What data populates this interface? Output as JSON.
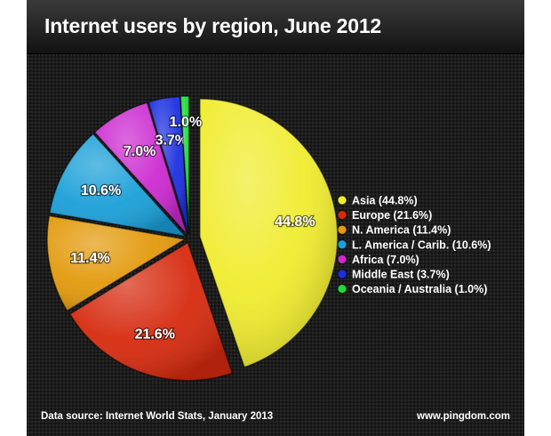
{
  "title": "Internet users by region, June 2012",
  "source": "Data source: Internet World Stats, January 2013",
  "site": "www.pingdom.com",
  "chart_data": {
    "type": "pie",
    "start_angle_deg": 0,
    "direction": "clockwise",
    "exploded": true,
    "slices": [
      {
        "name": "Asia (44.8%)",
        "value": 44.8,
        "label": "44.8%",
        "color": "#f0ec2e"
      },
      {
        "name": "Europe (21.6%)",
        "value": 21.6,
        "label": "21.6%",
        "color": "#d62a0e"
      },
      {
        "name": "N. America (11.4%)",
        "value": 11.4,
        "label": "11.4%",
        "color": "#e39a0c"
      },
      {
        "name": "L. America / Carib. (10.6%)",
        "value": 10.6,
        "label": "10.6%",
        "color": "#1a9fd8"
      },
      {
        "name": "Africa (7.0%)",
        "value": 7.0,
        "label": "7.0%",
        "color": "#cc2ad0"
      },
      {
        "name": "Middle East (3.7%)",
        "value": 3.7,
        "label": "3.7%",
        "color": "#1c2fe0"
      },
      {
        "name": "Oceania / Australia (1.0%)",
        "value": 1.0,
        "label": "1.0%",
        "color": "#1edb3a"
      }
    ]
  }
}
